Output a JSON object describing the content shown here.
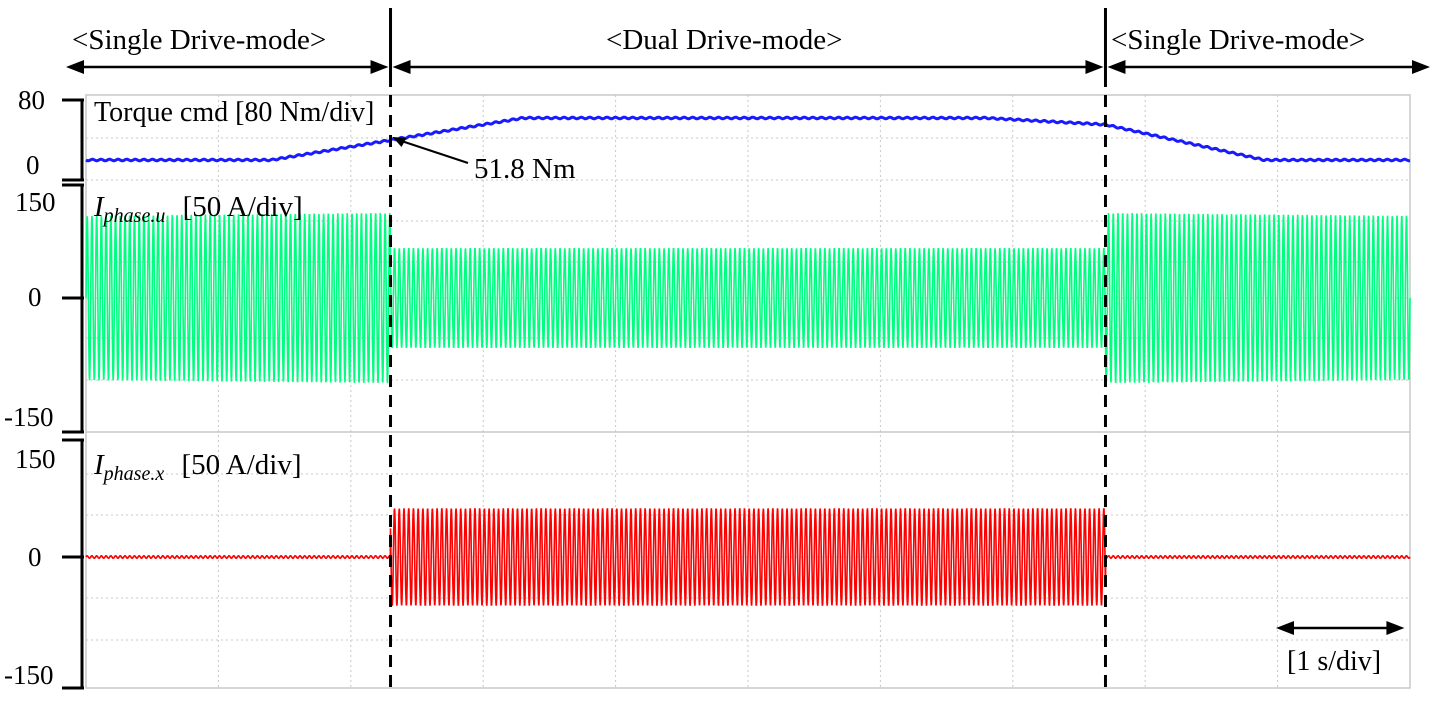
{
  "chart_data": {
    "type": "line",
    "modes": [
      "<Single Drive-mode>",
      "<Dual Drive-mode>",
      "<Single Drive-mode>"
    ],
    "mode_boundaries_s": [
      2.3,
      7.7
    ],
    "time_scale": "[1 s/div]",
    "x_range_s": [
      0,
      10
    ],
    "panels": [
      {
        "name": "Torque cmd",
        "scale_label": "[80 Nm/div]",
        "tick_labels": [
          "80",
          "0"
        ],
        "ylim": [
          0,
          80
        ],
        "color": "#1a1aff",
        "annotation": "51.8 Nm",
        "annotation_x_s": 2.3,
        "annotation_value": 51.8,
        "x": [
          0,
          1.4,
          3.3,
          6.8,
          7.7,
          8.9,
          10
        ],
        "values": [
          24,
          24,
          57,
          57,
          51.8,
          24,
          24
        ]
      },
      {
        "name_main": "I",
        "name_sub": "phase.u",
        "scale_label": "[50 A/div]",
        "tick_labels": [
          "150",
          "0",
          "-150"
        ],
        "ylim": [
          -150,
          150
        ],
        "color": "#00ff80",
        "kind": "sinusoid-envelope",
        "envelope_x": [
          0,
          2.3,
          2.3,
          7.7,
          7.7,
          10
        ],
        "envelope_amplitude": [
          140,
          145,
          85,
          85,
          145,
          140
        ]
      },
      {
        "name_main": "I",
        "name_sub": "phase.x",
        "scale_label": "[50 A/div]",
        "tick_labels": [
          "150",
          "0",
          "-150"
        ],
        "ylim": [
          -150,
          150
        ],
        "color": "#ff0000",
        "kind": "sinusoid-envelope",
        "envelope_x": [
          0,
          2.3,
          2.3,
          7.7,
          7.7,
          10
        ],
        "envelope_amplitude": [
          2,
          2,
          80,
          80,
          2,
          2
        ]
      }
    ]
  }
}
